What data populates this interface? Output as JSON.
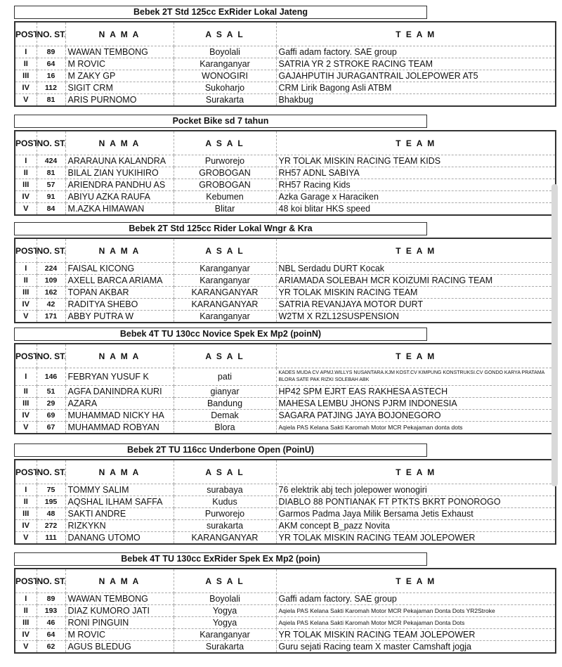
{
  "headers": {
    "pos": "POST",
    "no": "NO. START",
    "nama": "N A M A",
    "asal": "A S A L",
    "team": "T E A M"
  },
  "sections": [
    {
      "title": "Bebek 2T Std 125cc ExRider Lokal Jateng",
      "rows": [
        [
          "I",
          "89",
          "WAWAN TEMBONG",
          "Boyolali",
          "Gaffi adam factory. SAE group"
        ],
        [
          "II",
          "64",
          "M ROVIC",
          "Karanganyar",
          "SATRIA YR 2 STROKE RACING TEAM"
        ],
        [
          "III",
          "16",
          "M ZAKY GP",
          "WONOGIRI",
          "GAJAHPUTIH JURAGANTRAIL JOLEPOWER AT5"
        ],
        [
          "IV",
          "112",
          "SIGIT CRM",
          "Sukoharjo",
          "CRM Lirik Bagong Asli ATBM"
        ],
        [
          "V",
          "81",
          "ARIS PURNOMO",
          "Surakarta",
          "Bhakbug"
        ]
      ]
    },
    {
      "title": "Pocket Bike sd 7 tahun",
      "rows": [
        [
          "I",
          "424",
          "ARARAUNA KALANDRA",
          "Purworejo",
          "YR TOLAK MISKIN RACING TEAM KIDS"
        ],
        [
          "II",
          "81",
          "BILAL ZIAN YUKIHIRO",
          "GROBOGAN",
          "RH57 ADNL SABIYA"
        ],
        [
          "III",
          "57",
          "ARIENDRA PANDHU AS",
          "GROBOGAN",
          "RH57 Racing Kids"
        ],
        [
          "IV",
          "91",
          "ABIYU AZKA RAUFA",
          "Kebumen",
          "Azka Garage x Haraciken"
        ],
        [
          "V",
          "84",
          "M.AZKA HIMAWAN",
          "Blitar",
          "48 koi blitar HKS speed"
        ]
      ]
    },
    {
      "title": "Bebek 2T Std 125cc Rider Lokal Wngr & Kra",
      "rows": [
        [
          "I",
          "224",
          "FAISAL KICONG",
          "Karanganyar",
          "NBL Serdadu DURT Kocak"
        ],
        [
          "II",
          "109",
          "AXELL BARCA ARIAMA",
          "Karanganyar",
          "ARIAMADA SOLEBAH MCR KOIZUMI RACING TEAM"
        ],
        [
          "III",
          "162",
          "TOPAN AKBAR",
          "KARANGANYAR",
          "YR TOLAK MISKIN RACING TEAM"
        ],
        [
          "IV",
          "42",
          "RADITYA SHEBO",
          "KARANGANYAR",
          "SATRIA REVANJAYA MOTOR DURT"
        ],
        [
          "V",
          "171",
          "ABBY PUTRA W",
          "Karanganyar",
          "W2TM X RZL12SUSPENSION"
        ]
      ]
    },
    {
      "title": "Bebek 4T TU 130cc Novice Spek Ex Mp2 (poinN)",
      "rows": [
        [
          "I",
          "146",
          "FEBRYAN YUSUF K",
          "pati",
          "KADES MUDA CV APMJ.WILLYS NUSANTARA.KJM KOST.CV KIMPUNG KONSTRUKSI.CV GONDO KARYA PRATAMA BLORA SATE PAK RIZKI SOLEBAH ABK"
        ],
        [
          "II",
          "51",
          "AGFA DANINDRA KURI",
          "gianyar",
          "HP42 SPM EJRT EAS RAKHESA ASTECH"
        ],
        [
          "III",
          "29",
          "AZARA",
          "Bandung",
          "MAHESA LEMBU JHONS PJRM INDONESIA"
        ],
        [
          "IV",
          "69",
          "MUHAMMAD NICKY HA",
          "Demak",
          "SAGARA PATJING JAYA BOJONEGORO"
        ],
        [
          "V",
          "67",
          "MUHAMMAD ROBYAN",
          "Blora",
          "Aqiela PAS Kelana Sakti Karomah Motor MCR Pekajaman donta dots"
        ]
      ]
    },
    {
      "title": "Bebek 2T TU 116cc Underbone Open (PoinU)",
      "rows": [
        [
          "I",
          "75",
          "TOMMY SALIM",
          "surabaya",
          "76 elektrik abj tech jolepower wonogiri"
        ],
        [
          "II",
          "195",
          "AQSHAL ILHAM SAFFA",
          "Kudus",
          "DIABLO 88 PONTIANAK FT PTKTS BKRT PONOROGO"
        ],
        [
          "III",
          "48",
          "SAKTI ANDRE",
          "Purworejo",
          "Garmos Padma Jaya Milik Bersama Jetis Exhaust"
        ],
        [
          "IV",
          "272",
          "RIZKYKN",
          "surakarta",
          "AKM concept B_pazz Novita"
        ],
        [
          "V",
          "111",
          "DANANG UTOMO",
          "KARANGANYAR",
          "YR TOLAK MISKIN RACING TEAM JOLEPOWER"
        ]
      ]
    },
    {
      "title": "Bebek 4T TU 130cc ExRider Spek Ex Mp2 (poin)",
      "rows": [
        [
          "I",
          "89",
          "WAWAN TEMBONG",
          "Boyolali",
          "Gaffi adam factory. SAE group"
        ],
        [
          "II",
          "193",
          "DIAZ KUMORO JATI",
          "Yogya",
          "Aqiela PAS Kelana Sakti Karomah Motor MCR Pekajaman Donta Dots YR2Stroke"
        ],
        [
          "III",
          "46",
          "RONI PINGUIN",
          "Yogya",
          "Aqiela PAS Kelana Sakti Karomah Motor MCR Pekajaman Donta Dots"
        ],
        [
          "IV",
          "64",
          "M ROVIC",
          "Karanganyar",
          "YR TOLAK MISKIN RACING TEAM JOLEPOWER"
        ],
        [
          "V",
          "62",
          "AGUS BLEDUG",
          "Surakarta",
          "Guru sejati Racing team X master Camshaft jogja"
        ]
      ]
    }
  ]
}
